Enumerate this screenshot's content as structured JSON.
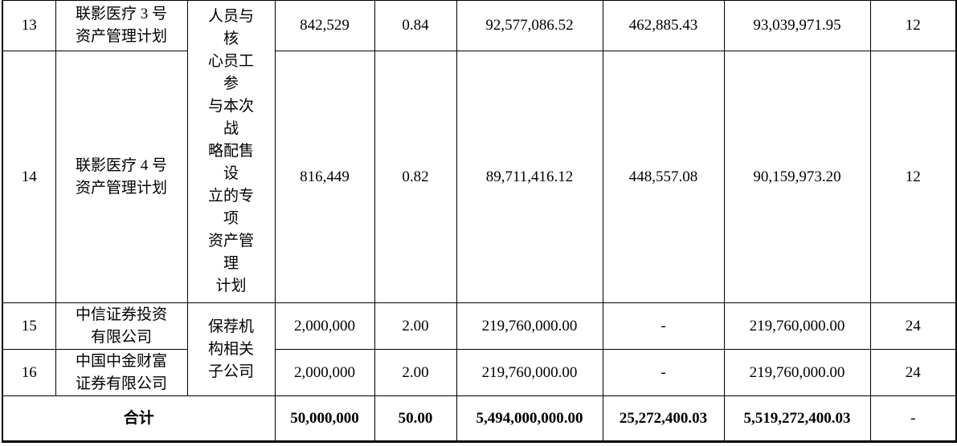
{
  "table": {
    "rows": [
      {
        "no": "13",
        "name": [
          "联影医疗 3 号",
          "资产管理计划"
        ],
        "shares": "842,529",
        "pct": "0.84",
        "amount": "92,577,086.52",
        "fee": "462,885.43",
        "total": "93,039,971.95",
        "months": "12"
      },
      {
        "no": "14",
        "name": [
          "联影医疗 4 号",
          "资产管理计划"
        ],
        "shares": "816,449",
        "pct": "0.82",
        "amount": "89,711,416.12",
        "fee": "448,557.08",
        "total": "90,159,973.20",
        "months": "12"
      },
      {
        "no": "15",
        "name": [
          "中信证券投资",
          "有限公司"
        ],
        "shares": "2,000,000",
        "pct": "2.00",
        "amount": "219,760,000.00",
        "fee": "-",
        "total": "219,760,000.00",
        "months": "24"
      },
      {
        "no": "16",
        "name": [
          "中国中金财富",
          "证券有限公司"
        ],
        "shares": "2,000,000",
        "pct": "2.00",
        "amount": "219,760,000.00",
        "fee": "-",
        "total": "219,760,000.00",
        "months": "24"
      }
    ],
    "groups": [
      {
        "span": 2,
        "lines": [
          "人员与",
          "核",
          "心员工",
          "参",
          "与本次",
          "战",
          "略配售",
          "设",
          "立的专",
          "项",
          "资产管",
          "理",
          "计划"
        ]
      },
      {
        "span": 2,
        "lines": [
          "保荐机",
          "构相关",
          "子公司"
        ]
      }
    ],
    "total": {
      "label": "合计",
      "shares": "50,000,000",
      "pct": "50.00",
      "amount": "5,494,000,000.00",
      "fee": "25,272,400.03",
      "total": "5,519,272,400.03",
      "months": "-"
    }
  }
}
